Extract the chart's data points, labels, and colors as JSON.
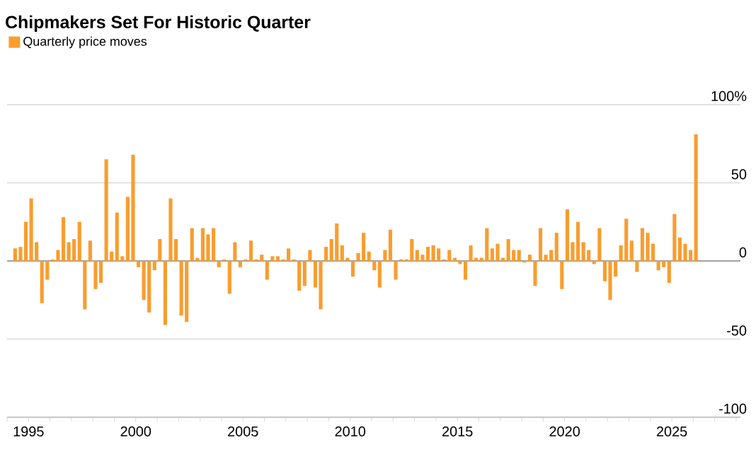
{
  "chart_data": {
    "type": "bar",
    "title": "Chipmakers Set For Historic Quarter",
    "x": [
      1994.375,
      1994.625,
      1994.875,
      1995.125,
      1995.375,
      1995.625,
      1995.875,
      1996.125,
      1996.375,
      1996.625,
      1996.875,
      1997.125,
      1997.375,
      1997.625,
      1997.875,
      1998.125,
      1998.375,
      1998.625,
      1998.875,
      1999.125,
      1999.375,
      1999.625,
      1999.875,
      2000.125,
      2000.375,
      2000.625,
      2000.875,
      2001.125,
      2001.375,
      2001.625,
      2001.875,
      2002.125,
      2002.375,
      2002.625,
      2002.875,
      2003.125,
      2003.375,
      2003.625,
      2003.875,
      2004.125,
      2004.375,
      2004.625,
      2004.875,
      2005.125,
      2005.375,
      2005.625,
      2005.875,
      2006.125,
      2006.375,
      2006.625,
      2006.875,
      2007.125,
      2007.375,
      2007.625,
      2007.875,
      2008.125,
      2008.375,
      2008.625,
      2008.875,
      2009.125,
      2009.375,
      2009.625,
      2009.875,
      2010.125,
      2010.375,
      2010.625,
      2010.875,
      2011.125,
      2011.375,
      2011.625,
      2011.875,
      2012.125,
      2012.375,
      2012.625,
      2012.875,
      2013.125,
      2013.375,
      2013.625,
      2013.875,
      2014.125,
      2014.375,
      2014.625,
      2014.875,
      2015.125,
      2015.375,
      2015.625,
      2015.875,
      2016.125,
      2016.375,
      2016.625,
      2016.875,
      2017.125,
      2017.375,
      2017.625,
      2017.875,
      2018.125,
      2018.375,
      2018.625,
      2018.875,
      2019.125,
      2019.375,
      2019.625,
      2019.875,
      2020.125,
      2020.375,
      2020.625,
      2020.875,
      2021.125,
      2021.375,
      2021.625,
      2021.875,
      2022.125,
      2022.375,
      2022.625,
      2022.875,
      2023.125,
      2023.375,
      2023.625,
      2023.875,
      2024.125,
      2024.375,
      2024.625,
      2024.875,
      2025.125,
      2025.375,
      2025.625,
      2025.875,
      2026.125
    ],
    "series": [
      {
        "name": "Quarterly price moves",
        "color": "#f99d2f",
        "values": [
          8,
          9,
          25,
          40,
          12,
          -27,
          -12,
          1,
          7,
          28,
          12,
          14,
          25,
          -31,
          13,
          -18,
          -14,
          65,
          6,
          31,
          3,
          41,
          68,
          -4,
          -25,
          -33,
          -6,
          14,
          -41,
          40,
          14,
          -35,
          -39,
          21,
          2,
          21,
          17,
          21,
          -4,
          1,
          -21,
          12,
          -4,
          1,
          13,
          1,
          4,
          -12,
          3,
          3,
          1,
          8,
          1,
          -19,
          -16,
          7,
          -17,
          -31,
          9,
          14,
          24,
          10,
          2,
          -10,
          5,
          18,
          6,
          -6,
          -17,
          7,
          20,
          -12,
          1,
          1,
          14,
          7,
          4,
          9,
          10,
          8,
          1,
          7,
          2,
          -2,
          -12,
          10,
          2,
          2,
          21,
          8,
          11,
          2,
          14,
          7,
          7,
          -1,
          4,
          -16,
          21,
          4,
          7,
          18,
          -18,
          33,
          12,
          25,
          12,
          7,
          -2,
          21,
          -13,
          -25,
          -10,
          10,
          27,
          13,
          -7,
          21,
          18,
          11,
          -6,
          -4,
          -14,
          30,
          15,
          11,
          7,
          81
        ]
      }
    ],
    "xlim": [
      1994,
      2028.2
    ],
    "xticks": [
      {
        "value": 1994,
        "label": null
      },
      1995,
      {
        "value": 1996,
        "label": null
      },
      {
        "value": 1997,
        "label": null
      },
      {
        "value": 1998,
        "label": null
      },
      {
        "value": 1999,
        "label": null
      },
      2000,
      {
        "value": 2001,
        "label": null
      },
      {
        "value": 2002,
        "label": null
      },
      {
        "value": 2003,
        "label": null
      },
      {
        "value": 2004,
        "label": null
      },
      2005,
      {
        "value": 2006,
        "label": null
      },
      {
        "value": 2007,
        "label": null
      },
      {
        "value": 2008,
        "label": null
      },
      {
        "value": 2009,
        "label": null
      },
      2010,
      {
        "value": 2011,
        "label": null
      },
      {
        "value": 2012,
        "label": null
      },
      {
        "value": 2013,
        "label": null
      },
      {
        "value": 2014,
        "label": null
      },
      2015,
      {
        "value": 2016,
        "label": null
      },
      {
        "value": 2017,
        "label": null
      },
      {
        "value": 2018,
        "label": null
      },
      {
        "value": 2019,
        "label": null
      },
      2020,
      {
        "value": 2021,
        "label": null
      },
      {
        "value": 2022,
        "label": null
      },
      {
        "value": 2023,
        "label": null
      },
      {
        "value": 2024,
        "label": null
      },
      2025,
      {
        "value": 2026,
        "label": null
      },
      {
        "value": 2027,
        "label": null
      },
      {
        "value": 2028,
        "label": null
      }
    ],
    "ylim": [
      -100,
      100
    ],
    "yticks": [
      -100,
      -50,
      0,
      50,
      {
        "value": 100,
        "label": "100%"
      }
    ],
    "grid": "y",
    "legend": "top left"
  }
}
